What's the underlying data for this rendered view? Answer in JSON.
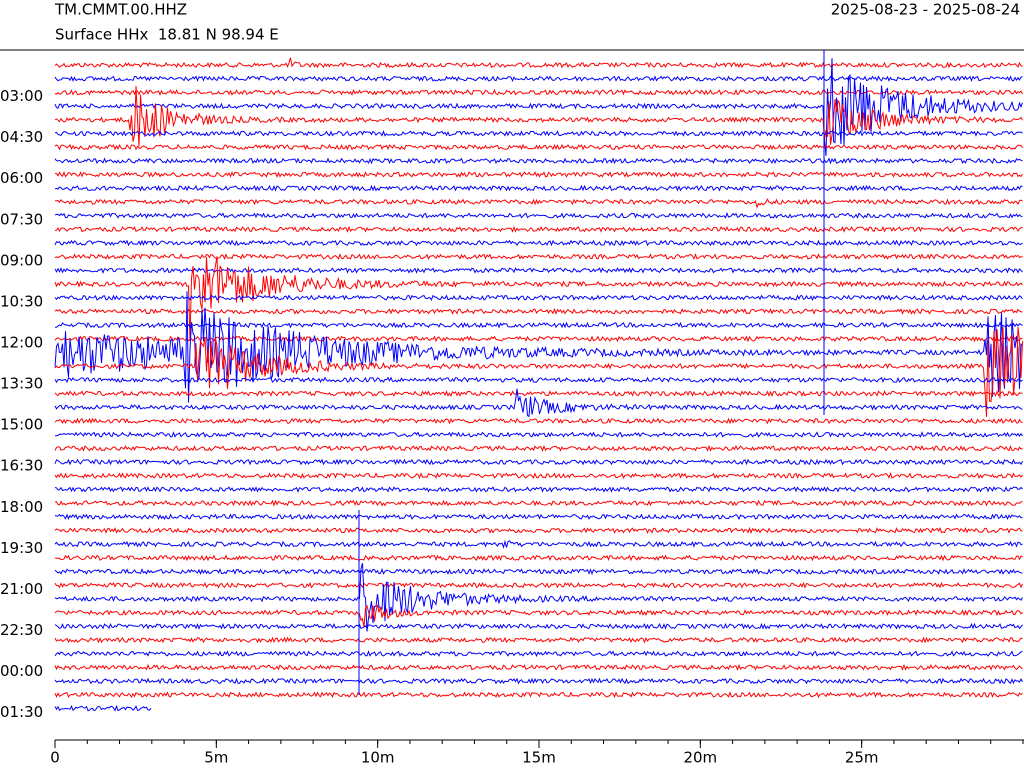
{
  "chart_data": {
    "type": "helicorder",
    "title": "TM.CMMT.00.HHZ",
    "subtitle": "Surface HHx  18.81 N 98.94 E",
    "date_range": "2025-08-23 - 2025-08-24",
    "colors": [
      "#ff0000",
      "#0000ff"
    ],
    "xlim": [
      0,
      30
    ],
    "xticks": [
      0,
      {
        "value": 5,
        "label": "5m"
      },
      {
        "value": 10,
        "label": "10m"
      },
      {
        "value": 15,
        "label": "15m"
      },
      {
        "value": 20,
        "label": "20m"
      },
      {
        "value": 25,
        "label": "25m"
      }
    ],
    "ylim": [
      1.3,
      26.5
    ],
    "yticks": [
      {
        "value": 3,
        "label": "03:00"
      },
      {
        "value": 4.5,
        "label": "04:30"
      },
      {
        "value": 6,
        "label": "06:00"
      },
      {
        "value": 7.5,
        "label": "07:30"
      },
      {
        "value": 9,
        "label": "09:00"
      },
      {
        "value": 10.5,
        "label": "10:30"
      },
      {
        "value": 12,
        "label": "12:00"
      },
      {
        "value": 13.5,
        "label": "13:30"
      },
      {
        "value": 15,
        "label": "15:00"
      },
      {
        "value": 16.5,
        "label": "16:30"
      },
      {
        "value": 18,
        "label": "18:00"
      },
      {
        "value": 19.5,
        "label": "19:30"
      },
      {
        "value": 21,
        "label": "21:00"
      },
      {
        "value": 22.5,
        "label": "22:30"
      },
      {
        "value": 24,
        "label": "00:00"
      },
      {
        "value": 25.5,
        "label": "01:30"
      }
    ]
  }
}
